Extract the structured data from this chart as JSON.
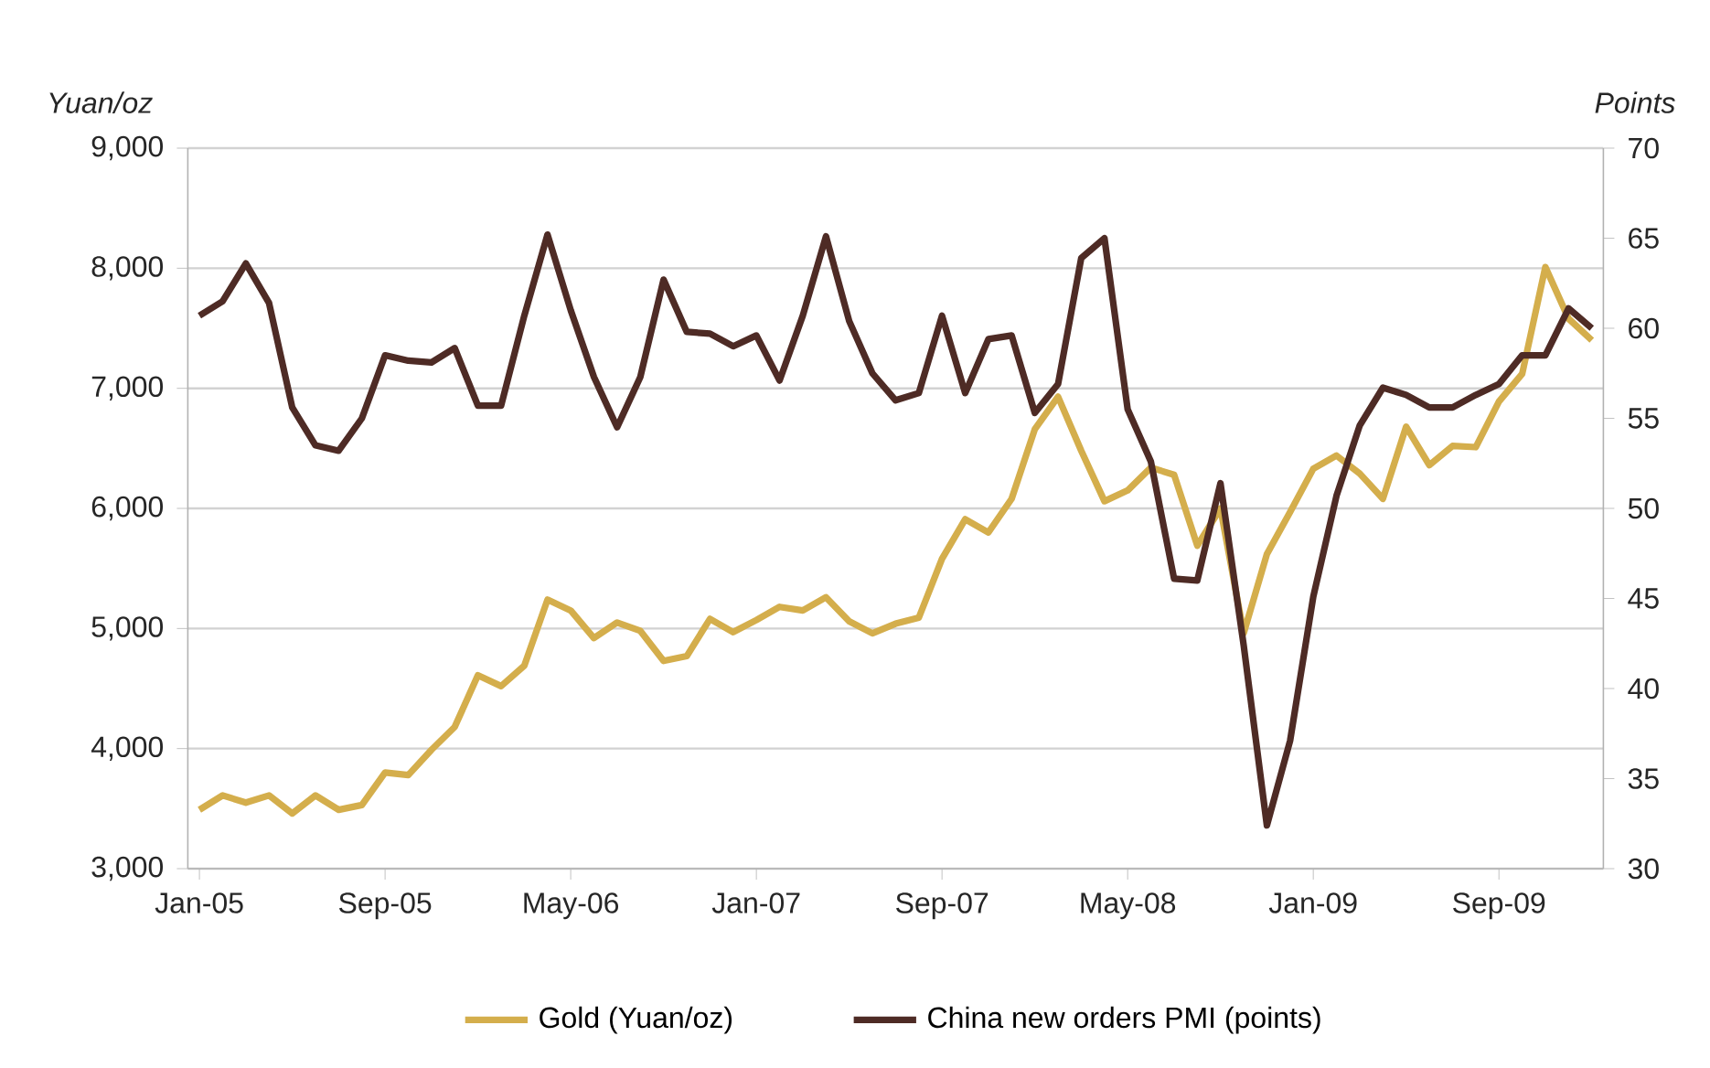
{
  "chart_data": {
    "type": "line",
    "ylabel": "Yuan/oz",
    "y2label": "Points",
    "categories": [
      "Jan-05",
      null,
      null,
      null,
      null,
      null,
      null,
      null,
      "Sep-05",
      null,
      null,
      null,
      null,
      null,
      null,
      null,
      "May-06",
      null,
      null,
      null,
      null,
      null,
      null,
      null,
      "Jan-07",
      null,
      null,
      null,
      null,
      null,
      null,
      null,
      "Sep-07",
      null,
      null,
      null,
      null,
      null,
      null,
      null,
      "May-08",
      null,
      null,
      null,
      null,
      null,
      null,
      null,
      "Jan-09",
      null,
      null,
      null,
      null,
      null,
      null,
      null,
      "Sep-09",
      null,
      null,
      null,
      null
    ],
    "series": [
      {
        "name": "Gold (Yuan/oz)",
        "color": "#d4ae4c",
        "values": [
          3490,
          3610,
          3550,
          3610,
          3460,
          3610,
          3490,
          3530,
          3800,
          3780,
          3990,
          4180,
          4610,
          4520,
          4690,
          5240,
          5150,
          4920,
          5050,
          4980,
          4730,
          4770,
          5080,
          4970,
          5070,
          5180,
          5150,
          5260,
          5060,
          4960,
          5040,
          5090,
          5580,
          5910,
          5800,
          6080,
          6660,
          6930,
          6480,
          6060,
          6150,
          6340,
          6280,
          5690,
          6000,
          4960,
          5620,
          5970,
          6330,
          6440,
          6290,
          6080,
          6680,
          6360,
          6520,
          6510,
          6890,
          7120,
          8010,
          7580,
          7400
        ]
      },
      {
        "name": "China new orders PMI (points)",
        "color": "#4e2b25",
        "axis": "y2",
        "values": [
          60.7,
          61.5,
          63.6,
          61.4,
          55.6,
          53.5,
          53.2,
          55.0,
          58.5,
          58.2,
          58.1,
          58.9,
          55.7,
          55.7,
          60.7,
          65.2,
          61.0,
          57.3,
          54.5,
          57.3,
          62.7,
          59.8,
          59.7,
          59.0,
          59.6,
          57.1,
          60.7,
          65.1,
          60.4,
          57.5,
          56.0,
          56.4,
          60.7,
          56.4,
          59.4,
          59.6,
          55.3,
          56.9,
          63.9,
          65.0,
          55.5,
          52.6,
          46.1,
          46.0,
          51.4,
          42.4,
          32.4,
          37.1,
          45.1,
          50.7,
          54.6,
          56.7,
          56.3,
          55.6,
          55.6,
          56.3,
          56.9,
          58.5,
          58.5,
          61.1,
          60.0
        ]
      }
    ],
    "ylim": [
      3000,
      9000
    ],
    "yticks": [
      {
        "value": 3000,
        "label": "3,000"
      },
      {
        "value": 4000,
        "label": "4,000"
      },
      {
        "value": 5000,
        "label": "5,000"
      },
      {
        "value": 6000,
        "label": "6,000"
      },
      {
        "value": 7000,
        "label": "7,000"
      },
      {
        "value": 8000,
        "label": "8,000"
      },
      {
        "value": 9000,
        "label": "9,000"
      }
    ],
    "y2lim": [
      30,
      70
    ],
    "y2ticks": [
      30,
      35,
      40,
      45,
      50,
      55,
      60,
      65,
      70
    ],
    "grid": "y",
    "legend": "bottom",
    "line_style": "solid"
  }
}
